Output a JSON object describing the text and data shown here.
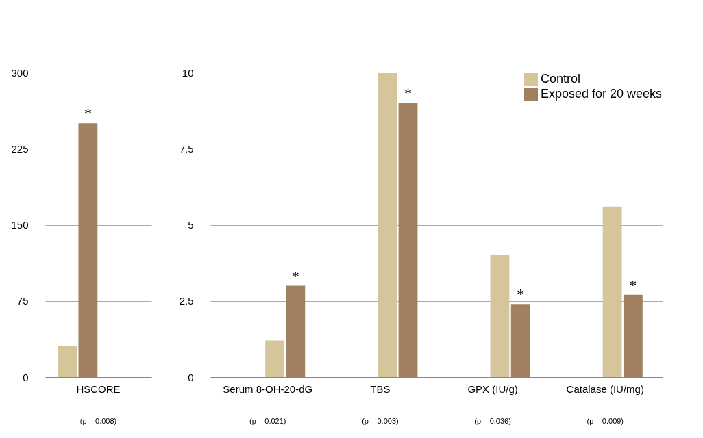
{
  "chart_data": [
    {
      "type": "bar",
      "categories": [
        "HSCORE"
      ],
      "series": [
        {
          "color": "#d4c59b",
          "values": [
            31
          ]
        },
        {
          "color": "#a0805e",
          "values": [
            250
          ]
        }
      ],
      "ylim": [
        0,
        300
      ],
      "yticks": [
        0,
        75,
        150,
        225,
        300
      ],
      "grid": "y",
      "legend": false,
      "annotations": [
        "(p = 0.008)",
        "*"
      ]
    },
    {
      "type": "bar",
      "categories": [
        "Serum 8-OH-20-dG",
        "TBS",
        "GPX (IU/g)",
        "Catalase (IU/mg)"
      ],
      "series": [
        {
          "name": "Control",
          "color": "#d4c59b",
          "values": [
            1.2,
            10,
            4.0,
            5.6
          ]
        },
        {
          "name": "Exposed for 20 weeks",
          "color": "#a0805e",
          "values": [
            3.0,
            9.0,
            2.4,
            2.7
          ]
        }
      ],
      "ylim": [
        0,
        10
      ],
      "yticks": [
        0,
        2.5,
        5,
        7.5,
        10
      ],
      "grid": "y",
      "legend": "top right",
      "annotations": [
        "(p = 0.021)",
        "(p = 0.003)",
        "(p = 0.036)",
        "(p = 0.009)",
        "*",
        "*",
        "*",
        "*"
      ]
    }
  ]
}
